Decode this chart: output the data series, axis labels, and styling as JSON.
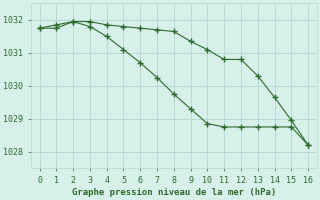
{
  "line1_x": [
    0,
    1,
    2,
    3,
    4,
    5,
    6,
    7,
    8,
    9,
    10,
    11,
    12,
    13,
    14,
    15,
    16
  ],
  "line1_y": [
    1031.75,
    1031.85,
    1031.95,
    1031.95,
    1031.85,
    1031.8,
    1031.75,
    1031.7,
    1031.65,
    1031.35,
    1031.1,
    1030.8,
    1030.8,
    1030.3,
    1029.65,
    1028.95,
    1028.2
  ],
  "line2_x": [
    0,
    1,
    2,
    3,
    4,
    5,
    6,
    7,
    8,
    9,
    10,
    11,
    12,
    13,
    14,
    15,
    16
  ],
  "line2_y": [
    1031.75,
    1031.75,
    1031.95,
    1031.8,
    1031.5,
    1031.1,
    1030.7,
    1030.25,
    1029.75,
    1029.3,
    1028.85,
    1028.75,
    1028.75,
    1028.75,
    1028.75,
    1028.75,
    1028.2
  ],
  "line_color": "#2d6a2d",
  "bg_color": "#d8f0ea",
  "grid_color": "#b0d8d0",
  "xlabel": "Graphe pression niveau de la mer (hPa)",
  "ylim": [
    1027.5,
    1032.5
  ],
  "xlim": [
    -0.5,
    16.5
  ],
  "yticks": [
    1028,
    1029,
    1030,
    1031,
    1032
  ],
  "xticks": [
    0,
    1,
    2,
    3,
    4,
    5,
    6,
    7,
    8,
    9,
    10,
    11,
    12,
    13,
    14,
    15,
    16
  ],
  "tick_color": "#2d6a2d",
  "label_fontsize": 6.5,
  "tick_fontsize": 6.0
}
